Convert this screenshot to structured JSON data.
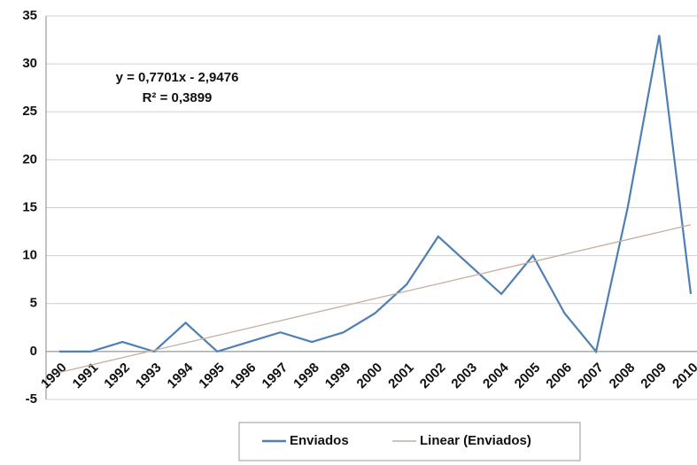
{
  "chart_data": {
    "type": "line",
    "categories": [
      "1990",
      "1991",
      "1992",
      "1993",
      "1994",
      "1995",
      "1996",
      "1997",
      "1998",
      "1999",
      "2000",
      "2001",
      "2002",
      "2003",
      "2004",
      "2005",
      "2006",
      "2007",
      "2008",
      "2009",
      "2010"
    ],
    "series": [
      {
        "name": "Enviados",
        "color": "#4f7fb3",
        "values": [
          0,
          0,
          1,
          0,
          3,
          0,
          1,
          2,
          1,
          2,
          4,
          7,
          12,
          9,
          6,
          10,
          4,
          0,
          15,
          33,
          6
        ]
      },
      {
        "name": "Linear (Enviados)",
        "color": "#c4aea2",
        "values": [
          -2.18,
          -1.41,
          -0.64,
          0.13,
          0.9,
          1.67,
          2.44,
          3.21,
          3.98,
          4.75,
          5.52,
          6.29,
          7.06,
          7.83,
          8.6,
          9.37,
          10.14,
          10.91,
          11.68,
          12.45,
          13.22
        ]
      }
    ],
    "annotations": [
      "y = 0,7701x - 2,9476",
      "R² = 0,3899"
    ],
    "ylim": [
      -5,
      35
    ],
    "yticks": [
      -5,
      0,
      5,
      10,
      15,
      20,
      25,
      30,
      35
    ],
    "grid": true,
    "legend": "bottom"
  }
}
